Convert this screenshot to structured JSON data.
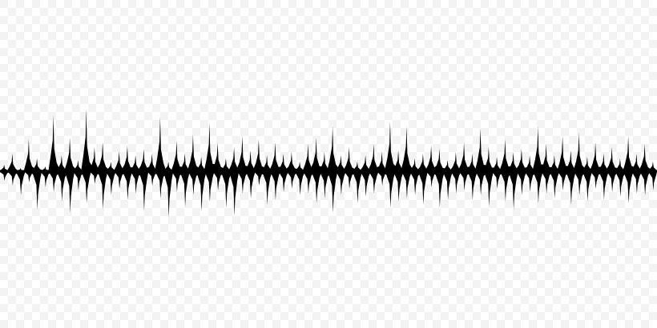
{
  "colors": {
    "background": "#ffffff",
    "checker_tile": "#f3f3f3",
    "waveform": "#000000"
  },
  "icons": {
    "waveform": "sound-waveform-icon"
  },
  "waveform": {
    "peaks_above": [
      8,
      22,
      4,
      40,
      16,
      6,
      70,
      20,
      42,
      14,
      78,
      30,
      36,
      12,
      25,
      32,
      20,
      28,
      22,
      68,
      12,
      38,
      22,
      46,
      18,
      60,
      36,
      16,
      30,
      44,
      26,
      40,
      20,
      36,
      22,
      24,
      12,
      34,
      42,
      24,
      56,
      20,
      30,
      12,
      20,
      34,
      24,
      62,
      26,
      56,
      16,
      22,
      32,
      28,
      14,
      24,
      36,
      22,
      54,
      30,
      18,
      40,
      24,
      28,
      20,
      56,
      34,
      20,
      44,
      26,
      48,
      18,
      36,
      22,
      30,
      16,
      44,
      22,
      34,
      12
    ],
    "peaks_below": [
      12,
      18,
      30,
      14,
      48,
      20,
      26,
      38,
      52,
      24,
      40,
      16,
      48,
      30,
      22,
      36,
      28,
      50,
      18,
      34,
      58,
      26,
      44,
      30,
      50,
      38,
      24,
      46,
      56,
      28,
      34,
      18,
      42,
      36,
      26,
      22,
      30,
      28,
      40,
      34,
      52,
      30,
      22,
      40,
      32,
      28,
      18,
      46,
      38,
      34,
      30,
      42,
      20,
      46,
      36,
      28,
      24,
      36,
      30,
      44,
      22,
      38,
      48,
      30,
      26,
      40,
      28,
      34,
      24,
      42,
      30,
      38,
      22,
      36,
      26,
      32,
      40,
      28,
      30,
      24
    ]
  }
}
